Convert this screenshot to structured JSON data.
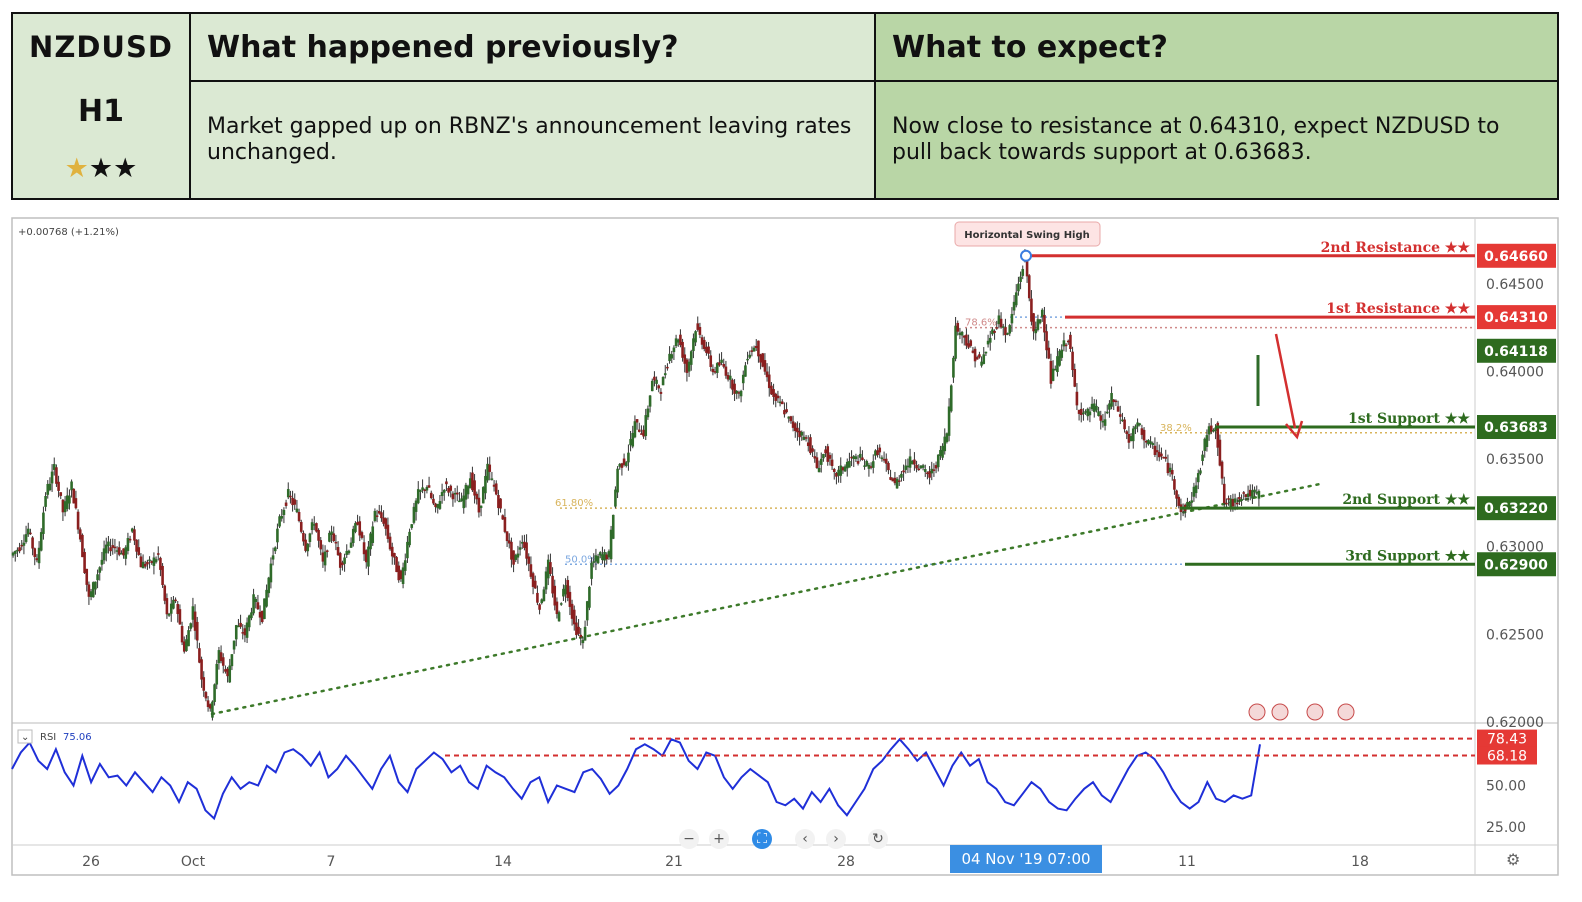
{
  "header": {
    "symbol": "NZDUSD",
    "timeframe": "H1",
    "rating_stars": 3,
    "rating_gold": 1,
    "previous_title": "What happened previously?",
    "previous_text": "Market gapped up on RBNZ's announcement leaving rates unchanged.",
    "expect_title": "What to expect?",
    "expect_text": "Now close to resistance at 0.64310, expect NZDUSD to pull back towards support at 0.63683."
  },
  "chart_data": {
    "type": "candlestick",
    "symbol": "NZDUSD",
    "timeframe": "H1",
    "change_label": "+0.00768 (+1.21%)",
    "ylim": [
      0.62,
      0.6475
    ],
    "y_ticks": [
      "0.64500",
      "0.64000",
      "0.63500",
      "0.63000",
      "0.62500",
      "0.62000"
    ],
    "x_ticks": [
      "26",
      "Oct",
      "7",
      "14",
      "21",
      "28",
      "11",
      "18"
    ],
    "current_price": "0.64118",
    "crosshair_date": "04 Nov '19   07:00",
    "annotation": "Horizontal Swing High",
    "levels": [
      {
        "name": "2nd Resistance",
        "stars": "★★",
        "value": "0.64660",
        "color": "#d32f2f"
      },
      {
        "name": "1st Resistance",
        "stars": "★★",
        "value": "0.64310",
        "color": "#d32f2f"
      },
      {
        "name": "1st Support",
        "stars": "★★",
        "value": "0.63683",
        "color": "#2e6b1f"
      },
      {
        "name": "2nd Support",
        "stars": "★★",
        "value": "0.63220",
        "color": "#2e6b1f"
      },
      {
        "name": "3rd Support",
        "stars": "★★",
        "value": "0.62900",
        "color": "#2e6b1f"
      }
    ],
    "fib_labels": [
      "61.80%",
      "50.0%",
      "78.6%",
      "38.2%"
    ],
    "price_path": [
      0.6295,
      0.63,
      0.631,
      0.629,
      0.633,
      0.6345,
      0.632,
      0.6335,
      0.6305,
      0.627,
      0.6285,
      0.63,
      0.63,
      0.6295,
      0.631,
      0.629,
      0.629,
      0.6295,
      0.626,
      0.627,
      0.624,
      0.6265,
      0.6225,
      0.6205,
      0.624,
      0.6225,
      0.6255,
      0.625,
      0.627,
      0.626,
      0.629,
      0.6315,
      0.633,
      0.632,
      0.63,
      0.6315,
      0.629,
      0.631,
      0.629,
      0.63,
      0.6315,
      0.629,
      0.632,
      0.6315,
      0.6295,
      0.628,
      0.631,
      0.633,
      0.6335,
      0.632,
      0.6335,
      0.633,
      0.6325,
      0.634,
      0.632,
      0.6345,
      0.633,
      0.631,
      0.629,
      0.6305,
      0.6285,
      0.6265,
      0.629,
      0.626,
      0.628,
      0.6255,
      0.6245,
      0.629,
      0.6295,
      0.6295,
      0.6345,
      0.635,
      0.637,
      0.6365,
      0.6395,
      0.639,
      0.641,
      0.642,
      0.64,
      0.6425,
      0.6415,
      0.64,
      0.6405,
      0.6395,
      0.6385,
      0.641,
      0.6415,
      0.64,
      0.6385,
      0.638,
      0.637,
      0.6365,
      0.636,
      0.6345,
      0.6355,
      0.634,
      0.6345,
      0.635,
      0.635,
      0.6345,
      0.6355,
      0.6345,
      0.6335,
      0.6345,
      0.635,
      0.6345,
      0.634,
      0.635,
      0.6365,
      0.6425,
      0.642,
      0.641,
      0.6405,
      0.642,
      0.643,
      0.642,
      0.6445,
      0.6465,
      0.642,
      0.6435,
      0.6395,
      0.641,
      0.642,
      0.638,
      0.6375,
      0.638,
      0.637,
      0.6385,
      0.6375,
      0.636,
      0.637,
      0.636,
      0.6355,
      0.635,
      0.634,
      0.632,
      0.6325,
      0.634,
      0.6365,
      0.637,
      0.6325,
      0.6325,
      0.633,
      0.633,
      0.633
    ],
    "rsi": {
      "label": "RSI",
      "value": "75.06",
      "y_ticks": [
        "50.00",
        "25.00"
      ],
      "levels": [
        "78.43",
        "68.18"
      ],
      "values": [
        60,
        70,
        76,
        65,
        60,
        72,
        58,
        50,
        68,
        52,
        63,
        55,
        56,
        50,
        58,
        52,
        46,
        55,
        50,
        40,
        52,
        48,
        35,
        30,
        45,
        55,
        48,
        52,
        50,
        62,
        58,
        70,
        72,
        68,
        62,
        70,
        55,
        60,
        68,
        62,
        55,
        48,
        60,
        68,
        52,
        46,
        60,
        65,
        70,
        66,
        58,
        62,
        52,
        48,
        62,
        58,
        55,
        48,
        42,
        52,
        55,
        40,
        50,
        48,
        46,
        58,
        60,
        54,
        45,
        50,
        60,
        72,
        75,
        72,
        68,
        78,
        76,
        65,
        60,
        70,
        68,
        55,
        48,
        55,
        60,
        56,
        52,
        40,
        38,
        42,
        36,
        46,
        40,
        48,
        38,
        32,
        40,
        48,
        60,
        65,
        72,
        78,
        72,
        65,
        70,
        60,
        50,
        62,
        70,
        62,
        66,
        52,
        48,
        40,
        38,
        45,
        52,
        48,
        40,
        36,
        35,
        42,
        48,
        52,
        44,
        40,
        50,
        60,
        68,
        70,
        66,
        58,
        48,
        40,
        36,
        40,
        52,
        42,
        40,
        44,
        42,
        44,
        75
      ]
    }
  },
  "controls": {
    "zoom_out": "−",
    "zoom_in": "+",
    "scroll_left": "‹",
    "scroll_right": "›",
    "reset": "↻",
    "settings": "⚙"
  }
}
